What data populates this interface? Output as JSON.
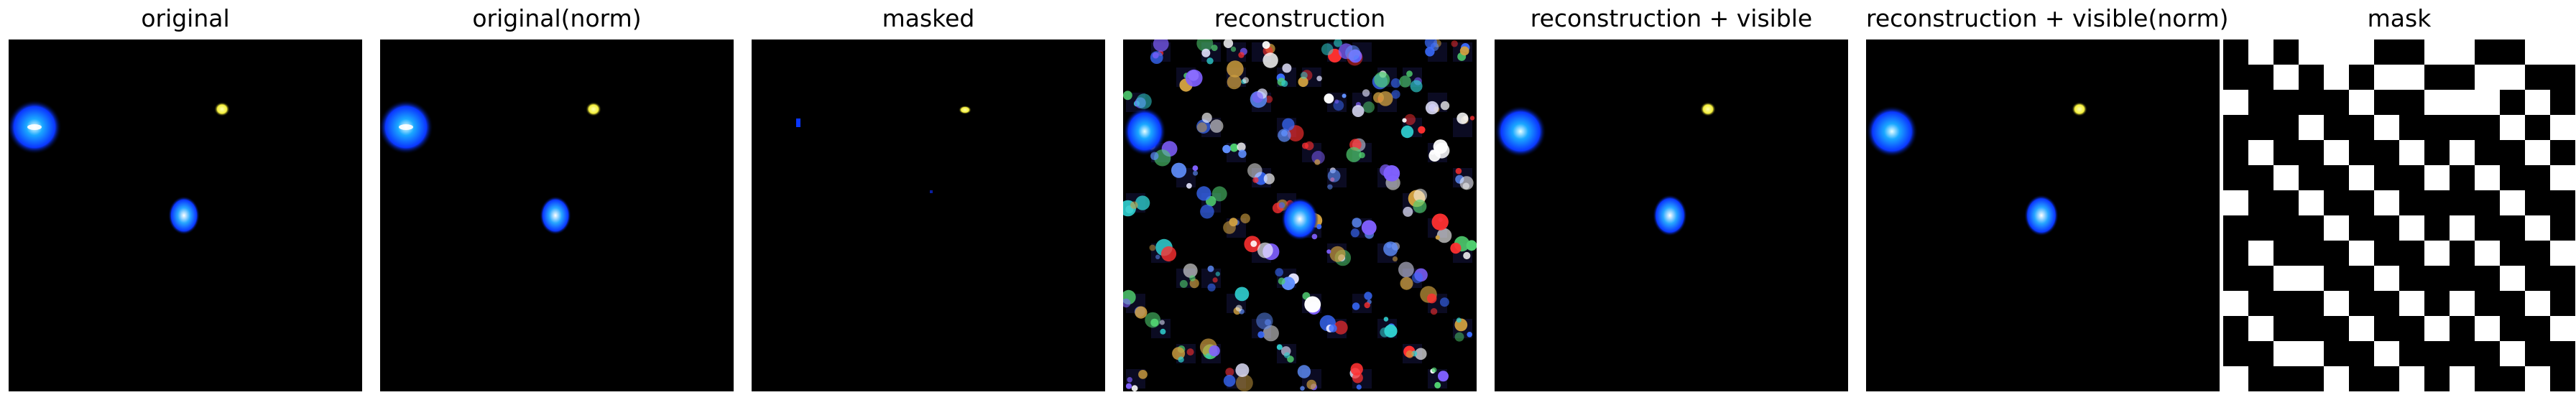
{
  "panels": [
    {
      "id": "original",
      "title": "original"
    },
    {
      "id": "original-norm",
      "title": "original(norm)"
    },
    {
      "id": "masked",
      "title": "masked"
    },
    {
      "id": "reconstruction",
      "title": "reconstruction"
    },
    {
      "id": "reconstruction-visible",
      "title": "reconstruction + visible"
    },
    {
      "id": "reconstruction-visible-norm",
      "title": "reconstruction + visible(norm)"
    },
    {
      "id": "mask",
      "title": "mask"
    }
  ],
  "colors": {
    "background": "#000000",
    "blob_cyan": "#1aa8ff",
    "blob_blue": "#0a36ff",
    "blob_yellow": "#f4ef3a",
    "mask_white": "#ffffff"
  },
  "mask_grid": {
    "rows": 14,
    "cols": 14,
    "white_cells": [
      [
        0,
        1
      ],
      [
        0,
        3
      ],
      [
        0,
        4
      ],
      [
        0,
        5
      ],
      [
        0,
        8
      ],
      [
        0,
        9
      ],
      [
        0,
        12
      ],
      [
        0,
        13
      ],
      [
        1,
        2
      ],
      [
        1,
        4
      ],
      [
        1,
        6
      ],
      [
        1,
        7
      ],
      [
        1,
        10
      ],
      [
        1,
        11
      ],
      [
        2,
        0
      ],
      [
        2,
        5
      ],
      [
        2,
        8
      ],
      [
        2,
        9
      ],
      [
        2,
        10
      ],
      [
        2,
        12
      ],
      [
        3,
        3
      ],
      [
        3,
        6
      ],
      [
        3,
        11
      ],
      [
        3,
        13
      ],
      [
        4,
        1
      ],
      [
        4,
        4
      ],
      [
        4,
        7
      ],
      [
        4,
        9
      ],
      [
        4,
        12
      ],
      [
        5,
        2
      ],
      [
        5,
        5
      ],
      [
        5,
        8
      ],
      [
        5,
        10
      ],
      [
        5,
        13
      ],
      [
        6,
        0
      ],
      [
        6,
        3
      ],
      [
        6,
        6
      ],
      [
        6,
        11
      ],
      [
        7,
        4
      ],
      [
        7,
        7
      ],
      [
        7,
        9
      ],
      [
        7,
        12
      ],
      [
        8,
        1
      ],
      [
        8,
        5
      ],
      [
        8,
        8
      ],
      [
        8,
        10
      ],
      [
        8,
        13
      ],
      [
        9,
        2
      ],
      [
        9,
        3
      ],
      [
        9,
        6
      ],
      [
        9,
        11
      ],
      [
        10,
        0
      ],
      [
        10,
        4
      ],
      [
        10,
        7
      ],
      [
        10,
        9
      ],
      [
        10,
        12
      ],
      [
        11,
        1
      ],
      [
        11,
        5
      ],
      [
        11,
        8
      ],
      [
        11,
        10
      ],
      [
        11,
        13
      ],
      [
        12,
        2
      ],
      [
        12,
        3
      ],
      [
        12,
        6
      ],
      [
        12,
        11
      ],
      [
        13,
        0
      ],
      [
        13,
        4
      ],
      [
        13,
        7
      ],
      [
        13,
        9
      ],
      [
        13,
        12
      ]
    ]
  }
}
